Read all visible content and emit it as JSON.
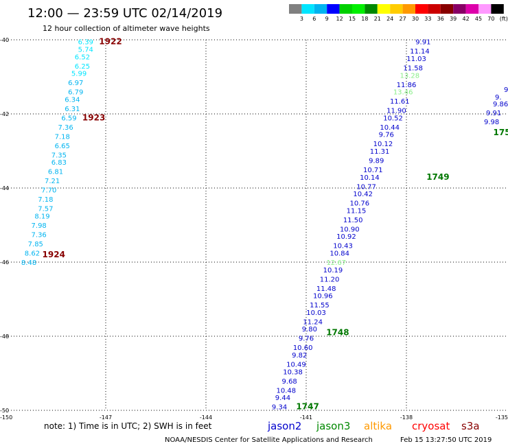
{
  "title": "12:00 — 23:59 UTC 02/14/2019",
  "subtitle": "12 hour collection of altimeter wave heights",
  "axes": {
    "lon_min": -150,
    "lon_max": -135,
    "lat_min": -50,
    "lat_max": -40,
    "lon_ticks": [
      "-150",
      "-147",
      "-144",
      "-141",
      "-138",
      "-135"
    ],
    "lat_ticks": [
      "-40",
      "-42",
      "-44",
      "-46",
      "-48",
      "-50"
    ]
  },
  "legend": {
    "labels": [
      "3",
      "6",
      "9",
      "12",
      "15",
      "18",
      "21",
      "24",
      "27",
      "30",
      "33",
      "36",
      "39",
      "42",
      "45",
      "70",
      "(ft)"
    ],
    "colors": [
      "#808080",
      "#00e5ff",
      "#00b4f0",
      "#0000ff",
      "#00d000",
      "#00f000",
      "#008800",
      "#ffff00",
      "#ffcc00",
      "#ff9900",
      "#ff0000",
      "#cc0000",
      "#880000",
      "#880066",
      "#dd00aa",
      "#ff99ff",
      "#000000"
    ]
  },
  "chart_data": {
    "type": "scatter",
    "tracks": [
      {
        "points": [
          {
            "lon": -147.6,
            "lat": -40.05,
            "v": "6.39",
            "c": "#00e5ff"
          },
          {
            "lon": -147.6,
            "lat": -40.25,
            "v": "5.74",
            "c": "#00e5ff"
          },
          {
            "lon": -147.7,
            "lat": -40.45,
            "v": "6.52",
            "c": "#00e5ff"
          },
          {
            "lon": -147.7,
            "lat": -40.7,
            "v": "6.25",
            "c": "#00e5ff"
          },
          {
            "lon": -147.8,
            "lat": -40.9,
            "v": "5.99",
            "c": "#00e5ff"
          },
          {
            "lon": -147.9,
            "lat": -41.15,
            "v": "6.97",
            "c": "#00b4f0"
          },
          {
            "lon": -147.9,
            "lat": -41.4,
            "v": "6.79",
            "c": "#00b4f0"
          },
          {
            "lon": -148.0,
            "lat": -41.6,
            "v": "6.34",
            "c": "#00b4f0"
          },
          {
            "lon": -148.0,
            "lat": -41.85,
            "v": "6.31",
            "c": "#00b4f0"
          },
          {
            "lon": -148.1,
            "lat": -42.1,
            "v": "6.59",
            "c": "#00b4f0"
          },
          {
            "lon": -148.2,
            "lat": -42.35,
            "v": "7.36",
            "c": "#00b4f0"
          },
          {
            "lon": -148.3,
            "lat": -42.6,
            "v": "7.18",
            "c": "#00b4f0"
          },
          {
            "lon": -148.3,
            "lat": -42.85,
            "v": "6.65",
            "c": "#00b4f0"
          },
          {
            "lon": -148.4,
            "lat": -43.1,
            "v": "7.35",
            "c": "#00b4f0"
          },
          {
            "lon": -148.4,
            "lat": -43.3,
            "v": "6.83",
            "c": "#00b4f0"
          },
          {
            "lon": -148.5,
            "lat": -43.55,
            "v": "6.81",
            "c": "#00b4f0"
          },
          {
            "lon": -148.6,
            "lat": -43.8,
            "v": "7.21",
            "c": "#00b4f0"
          },
          {
            "lon": -148.7,
            "lat": -44.05,
            "v": "7.70",
            "c": "#00b4f0"
          },
          {
            "lon": -148.8,
            "lat": -44.3,
            "v": "7.18",
            "c": "#00b4f0"
          },
          {
            "lon": -148.8,
            "lat": -44.55,
            "v": "7.57",
            "c": "#00b4f0"
          },
          {
            "lon": -148.9,
            "lat": -44.75,
            "v": "8.19",
            "c": "#00b4f0"
          },
          {
            "lon": -149.0,
            "lat": -45.0,
            "v": "7.98",
            "c": "#00b4f0"
          },
          {
            "lon": -149.0,
            "lat": -45.25,
            "v": "7.36",
            "c": "#00b4f0"
          },
          {
            "lon": -149.1,
            "lat": -45.5,
            "v": "7.85",
            "c": "#00b4f0"
          },
          {
            "lon": -149.2,
            "lat": -45.75,
            "v": "8.62",
            "c": "#00b4f0"
          },
          {
            "lon": -149.3,
            "lat": -46.0,
            "v": "8.48",
            "c": "#00b4f0"
          }
        ]
      },
      {
        "points": [
          {
            "lon": -141.8,
            "lat": -49.9,
            "v": "9.34",
            "c": "#0000cc"
          },
          {
            "lon": -141.7,
            "lat": -49.65,
            "v": "9.44",
            "c": "#0000cc"
          },
          {
            "lon": -141.6,
            "lat": -49.45,
            "v": "10.48",
            "c": "#0000cc"
          },
          {
            "lon": -141.5,
            "lat": -49.2,
            "v": "9.68",
            "c": "#0000cc"
          },
          {
            "lon": -141.4,
            "lat": -48.95,
            "v": "10.38",
            "c": "#0000cc"
          },
          {
            "lon": -141.3,
            "lat": -48.75,
            "v": "10.49",
            "c": "#0000cc"
          },
          {
            "lon": -141.2,
            "lat": -48.5,
            "v": "9.82",
            "c": "#0000cc"
          },
          {
            "lon": -141.1,
            "lat": -48.3,
            "v": "10.60",
            "c": "#0000cc"
          },
          {
            "lon": -141.0,
            "lat": -48.05,
            "v": "9.76",
            "c": "#0000cc"
          },
          {
            "lon": -140.9,
            "lat": -47.8,
            "v": "9.80",
            "c": "#0000cc"
          },
          {
            "lon": -140.8,
            "lat": -47.6,
            "v": "11.24",
            "c": "#0000cc"
          },
          {
            "lon": -140.7,
            "lat": -47.35,
            "v": "10.03",
            "c": "#0000cc"
          },
          {
            "lon": -140.6,
            "lat": -47.15,
            "v": "11.55",
            "c": "#0000cc"
          },
          {
            "lon": -140.5,
            "lat": -46.9,
            "v": "10.96",
            "c": "#0000cc"
          },
          {
            "lon": -140.4,
            "lat": -46.7,
            "v": "11.48",
            "c": "#0000cc"
          },
          {
            "lon": -140.3,
            "lat": -46.45,
            "v": "11.20",
            "c": "#0000cc"
          },
          {
            "lon": -140.2,
            "lat": -46.2,
            "v": "10.19",
            "c": "#0000cc"
          },
          {
            "lon": -140.1,
            "lat": -46.0,
            "v": "12.67",
            "c": "#88ee88"
          },
          {
            "lon": -140.0,
            "lat": -45.75,
            "v": "10.84",
            "c": "#0000cc"
          },
          {
            "lon": -139.9,
            "lat": -45.55,
            "v": "10.43",
            "c": "#0000cc"
          },
          {
            "lon": -139.8,
            "lat": -45.3,
            "v": "10.92",
            "c": "#0000cc"
          },
          {
            "lon": -139.7,
            "lat": -45.1,
            "v": "10.90",
            "c": "#0000cc"
          },
          {
            "lon": -139.6,
            "lat": -44.85,
            "v": "11.50",
            "c": "#0000cc"
          },
          {
            "lon": -139.5,
            "lat": -44.6,
            "v": "11.15",
            "c": "#0000cc"
          },
          {
            "lon": -139.4,
            "lat": -44.4,
            "v": "10.76",
            "c": "#0000cc"
          },
          {
            "lon": -139.3,
            "lat": -44.15,
            "v": "10.42",
            "c": "#0000cc"
          },
          {
            "lon": -139.2,
            "lat": -43.95,
            "v": "10.77",
            "c": "#0000cc"
          },
          {
            "lon": -139.1,
            "lat": -43.7,
            "v": "10.14",
            "c": "#0000cc"
          },
          {
            "lon": -139.0,
            "lat": -43.5,
            "v": "10.71",
            "c": "#0000cc"
          },
          {
            "lon": -138.9,
            "lat": -43.25,
            "v": "9.89",
            "c": "#0000cc"
          },
          {
            "lon": -138.8,
            "lat": -43.0,
            "v": "11.31",
            "c": "#0000cc"
          },
          {
            "lon": -138.7,
            "lat": -42.8,
            "v": "10.12",
            "c": "#0000cc"
          },
          {
            "lon": -138.6,
            "lat": -42.55,
            "v": "9.76",
            "c": "#0000cc"
          },
          {
            "lon": -138.5,
            "lat": -42.35,
            "v": "10.44",
            "c": "#0000cc"
          },
          {
            "lon": -138.4,
            "lat": -42.1,
            "v": "10.52",
            "c": "#0000cc"
          },
          {
            "lon": -138.3,
            "lat": -41.9,
            "v": "11.90",
            "c": "#0000cc"
          },
          {
            "lon": -138.2,
            "lat": -41.65,
            "v": "11.61",
            "c": "#0000cc"
          },
          {
            "lon": -138.1,
            "lat": -41.4,
            "v": "13.46",
            "c": "#88ee88"
          },
          {
            "lon": -138.0,
            "lat": -41.2,
            "v": "11.86",
            "c": "#0000cc"
          },
          {
            "lon": -137.9,
            "lat": -40.95,
            "v": "13.28",
            "c": "#88ee88"
          },
          {
            "lon": -137.8,
            "lat": -40.75,
            "v": "11.58",
            "c": "#0000cc"
          },
          {
            "lon": -137.7,
            "lat": -40.5,
            "v": "11.03",
            "c": "#0000cc"
          },
          {
            "lon": -137.6,
            "lat": -40.3,
            "v": "11.14",
            "c": "#0000cc"
          },
          {
            "lon": -137.5,
            "lat": -40.05,
            "v": "9.91",
            "c": "#0000cc"
          }
        ]
      }
    ],
    "edge_marks": [
      {
        "x": 718,
        "y": 155,
        "v": "9.86"
      },
      {
        "x": 721,
        "y": 145,
        "v": "9."
      },
      {
        "x": 734,
        "y": 134,
        "v": "9"
      },
      {
        "x": 708,
        "y": 168,
        "v": "9.91"
      },
      {
        "x": 705,
        "y": 181,
        "v": "9.98"
      }
    ]
  },
  "pass_times": [
    {
      "label": "1922",
      "lon": -147.2,
      "lat": -40.05,
      "c": "#880000"
    },
    {
      "label": "1923",
      "lon": -147.7,
      "lat": -42.1,
      "c": "#880000"
    },
    {
      "label": "1924",
      "lon": -148.9,
      "lat": -45.8,
      "c": "#880000"
    },
    {
      "label": "1747",
      "lon": -141.3,
      "lat": -49.9,
      "c": "#007700"
    },
    {
      "label": "1748",
      "lon": -140.4,
      "lat": -47.9,
      "c": "#007700"
    },
    {
      "label": "1749",
      "lon": -137.4,
      "lat": -43.7,
      "c": "#007700"
    },
    {
      "label": "175",
      "lon": -135.4,
      "lat": -42.5,
      "c": "#007700"
    }
  ],
  "note": "note:  1) Time is in UTC;  2) SWH is in feet",
  "satellites": [
    {
      "name": "jason2",
      "color": "#0000cc"
    },
    {
      "name": "jason3",
      "color": "#008800"
    },
    {
      "name": "altika",
      "color": "#ff9900"
    },
    {
      "name": "cryosat",
      "color": "#ff0000"
    },
    {
      "name": "s3a",
      "color": "#880000"
    }
  ],
  "credit_left": "NOAA/NESDIS Center for Satellite Applications and Research",
  "credit_right": "Feb 15 13:27:50 UTC 2019"
}
